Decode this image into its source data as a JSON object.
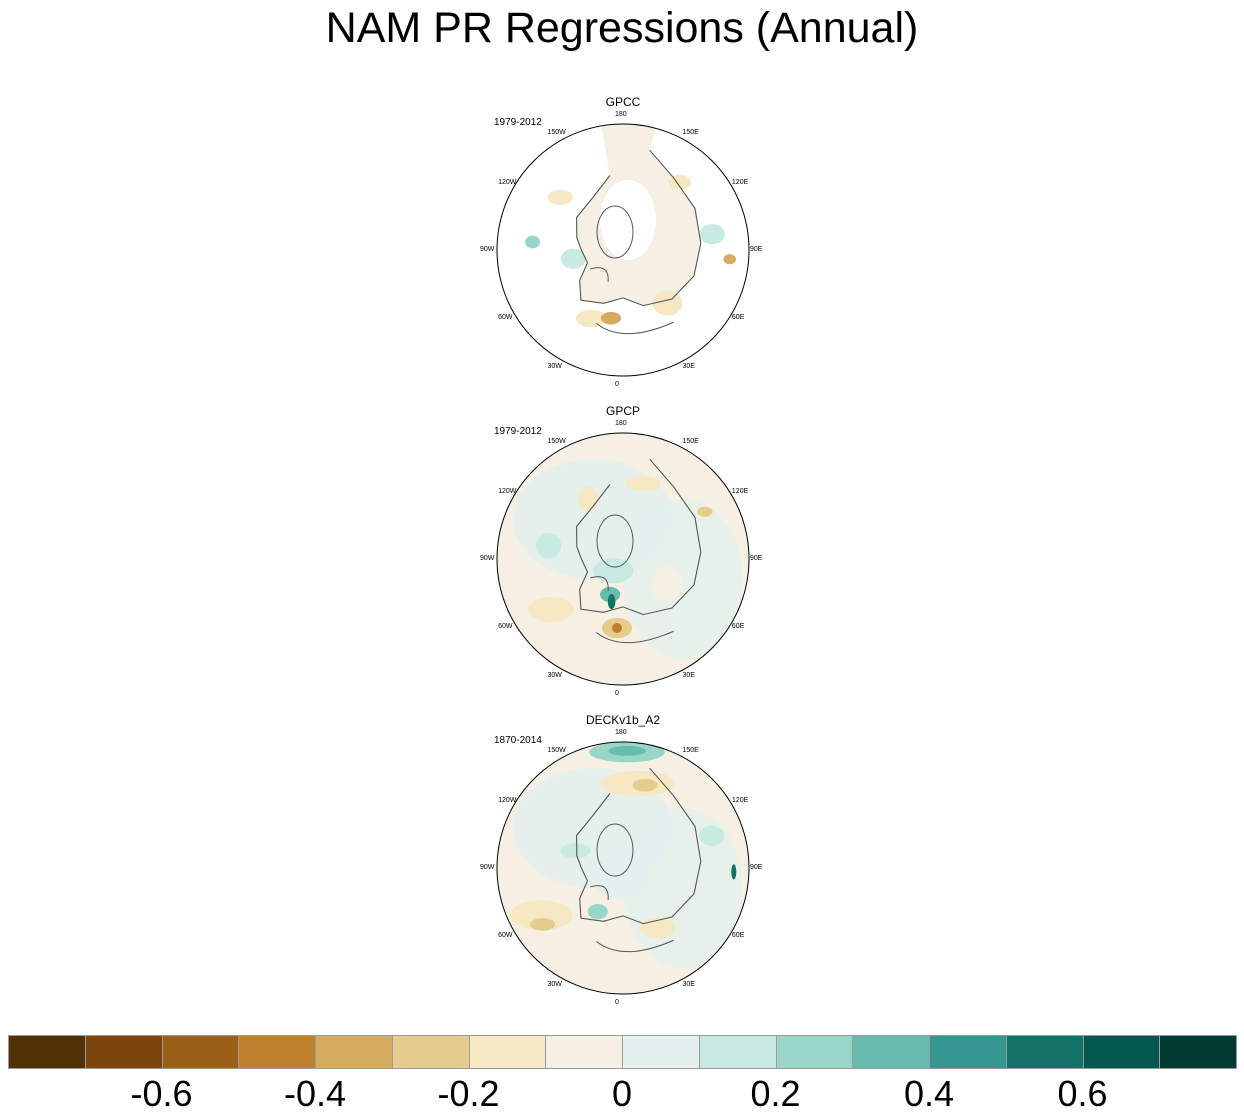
{
  "chart_data": {
    "type": "heatmap",
    "projection": "north-polar-stereographic",
    "title": "NAM PR Regressions (Annual)",
    "longitude_labels": [
      "180",
      "150E",
      "120E",
      "90E",
      "60E",
      "30E",
      "0",
      "30W",
      "60W",
      "90W",
      "120W",
      "150W"
    ],
    "colorbar": {
      "levels": [
        -0.7,
        -0.6,
        -0.5,
        -0.4,
        -0.3,
        -0.2,
        -0.1,
        0,
        0.1,
        0.2,
        0.3,
        0.4,
        0.5,
        0.6,
        0.7
      ],
      "tick_labels": [
        "-0.6",
        "-0.4",
        "-0.2",
        "0",
        "0.2",
        "0.4",
        "0.6"
      ],
      "tick_values": [
        -0.6,
        -0.4,
        -0.2,
        0,
        0.2,
        0.4,
        0.6
      ],
      "colors": [
        "#543005",
        "#7b450b",
        "#9c5f18",
        "#bf812d",
        "#d4ab5f",
        "#e6cb8e",
        "#f5e8c3",
        "#f5f0e3",
        "#e3f0ed",
        "#c7eae3",
        "#98d6ca",
        "#67bcad",
        "#35978f",
        "#137369",
        "#01574d",
        "#013a31"
      ]
    },
    "panels": [
      {
        "name": "GPCC",
        "period": "1979-2012",
        "ocean_missing": true,
        "features": [
          "weak negative over Europe and NE Africa",
          "weak positive over Canada",
          "weak negative over Siberia"
        ]
      },
      {
        "name": "GPCP",
        "period": "1979-2012",
        "ocean_missing": false,
        "features": [
          "positive anomaly near Iceland / Norwegian Sea",
          "negative anomaly over southern Europe",
          "negative anomaly over central Atlantic"
        ]
      },
      {
        "name": "DECKv1b_A2",
        "period": "1870-2014",
        "ocean_missing": false,
        "features": [
          "strong positive over North Pacific near 180",
          "negative anomaly over Aleutians",
          "negative anomaly over western Atlantic"
        ]
      }
    ]
  }
}
